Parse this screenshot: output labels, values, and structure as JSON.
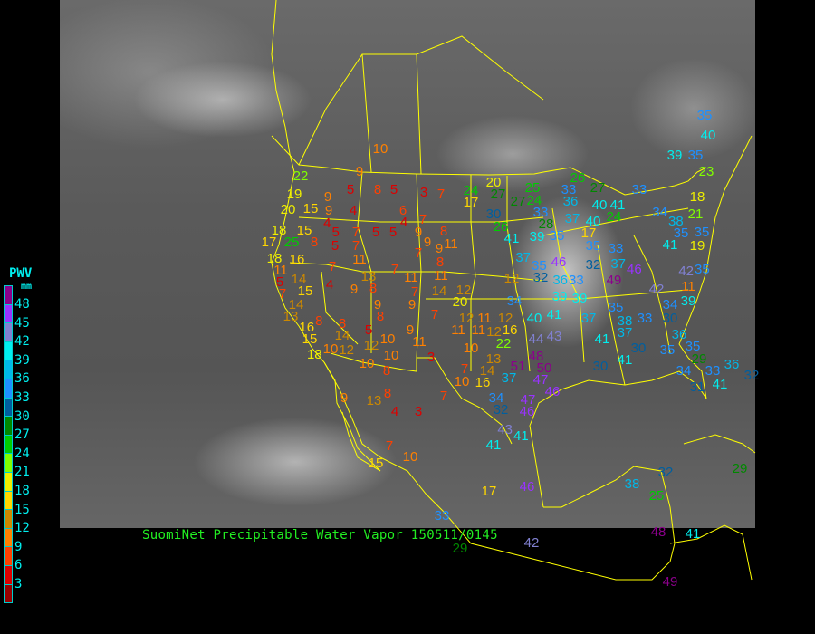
{
  "title": "SuomiNet Precipitable Water Vapor 150511/0145",
  "legend": {
    "title": "PWV",
    "unit": "mm",
    "labels": [
      "48",
      "45",
      "42",
      "39",
      "36",
      "33",
      "30",
      "27",
      "24",
      "21",
      "18",
      "15",
      "12",
      "9",
      "6",
      "3"
    ],
    "colors": [
      "#8b008b",
      "#9933ff",
      "#8080d0",
      "#00eeee",
      "#00b8e8",
      "#1e90ff",
      "#005f9f",
      "#008800",
      "#00cc00",
      "#80ff00",
      "#eeee00",
      "#ffd700",
      "#cc8800",
      "#ff8000",
      "#ff4000",
      "#dd0000",
      "#990000"
    ]
  },
  "boundary_color": "#ffff00",
  "stations": [
    "10",
    "22",
    "9",
    "5",
    "8",
    "5",
    "3",
    "7",
    "17",
    "19",
    "9",
    "20",
    "15",
    "9",
    "4",
    "6",
    "4",
    "7",
    "4",
    "18",
    "15",
    "5",
    "7",
    "5",
    "5",
    "9",
    "8",
    "17",
    "25",
    "8",
    "5",
    "7",
    "9",
    "11",
    "18",
    "16",
    "11",
    "7",
    "9",
    "8",
    "11",
    "7",
    "7",
    "5",
    "14",
    "13",
    "11",
    "11",
    "7",
    "15",
    "4",
    "9",
    "8",
    "7",
    "14",
    "12",
    "14",
    "9",
    "9",
    "7",
    "12",
    "11",
    "12",
    "13",
    "8",
    "8",
    "8",
    "16",
    "5",
    "14",
    "9",
    "11",
    "11",
    "12",
    "16",
    "15",
    "12",
    "10",
    "11",
    "22",
    "10",
    "18",
    "10",
    "12",
    "10",
    "3",
    "13",
    "10",
    "8",
    "7",
    "14",
    "51",
    "50",
    "10",
    "16",
    "37",
    "47",
    "46",
    "9",
    "13",
    "8",
    "7",
    "34",
    "47",
    "4",
    "3",
    "32",
    "46",
    "43",
    "41",
    "41",
    "7",
    "10",
    "15",
    "17",
    "46",
    "40",
    "41",
    "44",
    "43",
    "48",
    "35",
    "40",
    "39",
    "35",
    "23",
    "20",
    "24",
    "27",
    "27",
    "24",
    "25",
    "26",
    "33",
    "27",
    "36",
    "40",
    "41",
    "33",
    "18",
    "30",
    "33",
    "37",
    "40",
    "24",
    "34",
    "38",
    "21",
    "26",
    "28",
    "39",
    "35",
    "17",
    "41",
    "35",
    "35",
    "35",
    "33",
    "41",
    "19",
    "37",
    "35",
    "46",
    "32",
    "37",
    "46",
    "42",
    "35",
    "32",
    "36",
    "33",
    "49",
    "11",
    "12",
    "20",
    "34",
    "39",
    "39",
    "42",
    "39",
    "34",
    "37",
    "35",
    "38",
    "33",
    "30",
    "41",
    "37",
    "36",
    "30",
    "35",
    "35",
    "30",
    "41",
    "29",
    "34",
    "33",
    "36",
    "32",
    "41",
    "31",
    "32",
    "29",
    "38",
    "25",
    "33",
    "29",
    "42",
    "48",
    "41",
    "49"
  ]
}
